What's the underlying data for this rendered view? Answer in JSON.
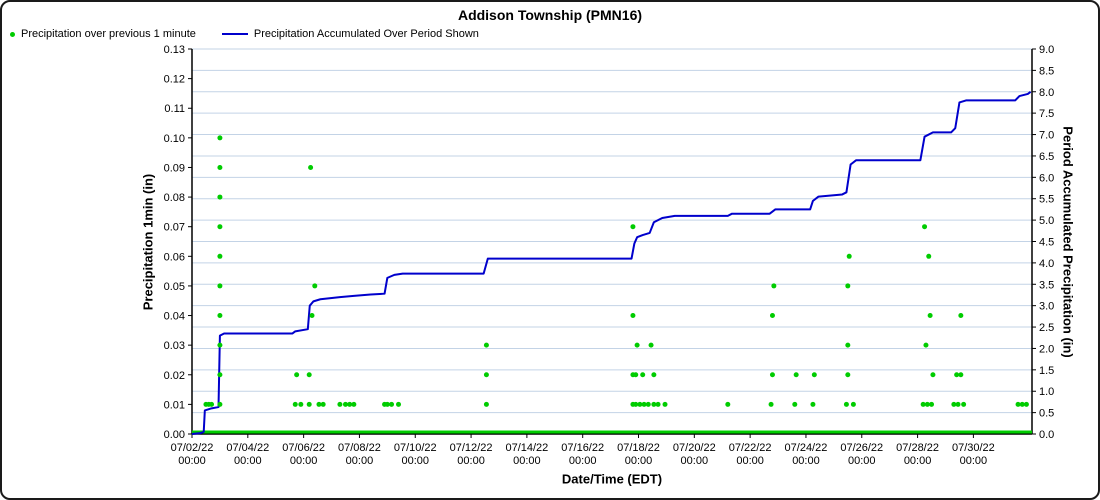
{
  "chart_data": {
    "type": "scatter+line",
    "title": "Addison Township (PMN16)",
    "style": {
      "grid_color": "#c3d3e6",
      "axis_color": "#000000",
      "background": "#ffffff"
    },
    "x_axis": {
      "label": "Date/Time (EDT)",
      "unit": "days since 07/02/22 00:00",
      "range_days": [
        0,
        30.1
      ],
      "tick_time": "00:00",
      "ticks": [
        "07/02/22",
        "07/04/22",
        "07/06/22",
        "07/08/22",
        "07/10/22",
        "07/12/22",
        "07/14/22",
        "07/16/22",
        "07/18/22",
        "07/20/22",
        "07/22/22",
        "07/24/22",
        "07/26/22",
        "07/28/22",
        "07/30/22"
      ]
    },
    "left_axis": {
      "label": "Precipitation 1min (in)",
      "min": 0,
      "max": 0.13,
      "ticks": [
        "0.00",
        "0.01",
        "0.02",
        "0.03",
        "0.04",
        "0.05",
        "0.06",
        "0.07",
        "0.08",
        "0.09",
        "0.10",
        "0.11",
        "0.12",
        "0.13"
      ]
    },
    "right_axis": {
      "label": "Period Accumulated Precipitation (in)",
      "min": 0,
      "max": 9.0,
      "ticks": [
        "0.0",
        "0.5",
        "1.0",
        "1.5",
        "2.0",
        "2.5",
        "3.0",
        "3.5",
        "4.0",
        "4.5",
        "5.0",
        "5.5",
        "6.0",
        "6.5",
        "7.0",
        "7.5",
        "8.0",
        "8.5",
        "9.0"
      ]
    },
    "baseline": {
      "value": 0.0,
      "color": "#00CC00"
    },
    "series": [
      {
        "name": "Precipitation over previous 1 minute",
        "type": "scatter",
        "color": "#00CC00",
        "axis": "left",
        "points": [
          [
            0.5,
            0.01
          ],
          [
            0.6,
            0.01
          ],
          [
            0.7,
            0.01
          ],
          [
            1.0,
            0.01
          ],
          [
            1.0,
            0.02
          ],
          [
            1.0,
            0.03
          ],
          [
            1.0,
            0.04
          ],
          [
            1.0,
            0.05
          ],
          [
            1.0,
            0.06
          ],
          [
            1.0,
            0.07
          ],
          [
            1.0,
            0.08
          ],
          [
            1.0,
            0.09
          ],
          [
            1.0,
            0.1
          ],
          [
            3.7,
            0.01
          ],
          [
            3.75,
            0.02
          ],
          [
            3.9,
            0.01
          ],
          [
            4.2,
            0.01
          ],
          [
            4.2,
            0.02
          ],
          [
            4.25,
            0.09
          ],
          [
            4.3,
            0.04
          ],
          [
            4.4,
            0.05
          ],
          [
            4.55,
            0.01
          ],
          [
            4.7,
            0.01
          ],
          [
            5.3,
            0.01
          ],
          [
            5.5,
            0.01
          ],
          [
            5.65,
            0.01
          ],
          [
            5.8,
            0.01
          ],
          [
            6.9,
            0.01
          ],
          [
            7.0,
            0.01
          ],
          [
            7.15,
            0.01
          ],
          [
            7.4,
            0.01
          ],
          [
            10.55,
            0.01
          ],
          [
            10.55,
            0.02
          ],
          [
            10.55,
            0.03
          ],
          [
            15.8,
            0.01
          ],
          [
            15.8,
            0.02
          ],
          [
            15.8,
            0.04
          ],
          [
            15.8,
            0.07
          ],
          [
            15.9,
            0.01
          ],
          [
            15.9,
            0.02
          ],
          [
            15.95,
            0.03
          ],
          [
            16.05,
            0.01
          ],
          [
            16.15,
            0.02
          ],
          [
            16.2,
            0.01
          ],
          [
            16.35,
            0.01
          ],
          [
            16.45,
            0.03
          ],
          [
            16.55,
            0.01
          ],
          [
            16.55,
            0.02
          ],
          [
            16.7,
            0.01
          ],
          [
            16.95,
            0.01
          ],
          [
            19.2,
            0.01
          ],
          [
            20.75,
            0.01
          ],
          [
            20.8,
            0.02
          ],
          [
            20.8,
            0.04
          ],
          [
            20.85,
            0.05
          ],
          [
            21.6,
            0.01
          ],
          [
            21.65,
            0.02
          ],
          [
            22.25,
            0.01
          ],
          [
            22.3,
            0.02
          ],
          [
            23.45,
            0.01
          ],
          [
            23.5,
            0.02
          ],
          [
            23.5,
            0.03
          ],
          [
            23.5,
            0.05
          ],
          [
            23.55,
            0.06
          ],
          [
            23.7,
            0.01
          ],
          [
            26.2,
            0.01
          ],
          [
            26.25,
            0.07
          ],
          [
            26.3,
            0.03
          ],
          [
            26.35,
            0.01
          ],
          [
            26.4,
            0.06
          ],
          [
            26.45,
            0.04
          ],
          [
            26.5,
            0.01
          ],
          [
            26.55,
            0.02
          ],
          [
            27.3,
            0.01
          ],
          [
            27.4,
            0.02
          ],
          [
            27.45,
            0.01
          ],
          [
            27.55,
            0.02
          ],
          [
            27.55,
            0.04
          ],
          [
            27.65,
            0.01
          ],
          [
            29.6,
            0.01
          ],
          [
            29.75,
            0.01
          ],
          [
            29.9,
            0.01
          ]
        ]
      },
      {
        "name": "Precipitation Accumulated Over Period Shown",
        "type": "line",
        "color": "#0000CC",
        "axis": "right",
        "points": [
          [
            0.0,
            0.0
          ],
          [
            0.3,
            0.02
          ],
          [
            0.42,
            0.05
          ],
          [
            0.46,
            0.55
          ],
          [
            0.7,
            0.6
          ],
          [
            0.95,
            0.63
          ],
          [
            1.0,
            2.3
          ],
          [
            1.15,
            2.35
          ],
          [
            3.6,
            2.35
          ],
          [
            3.7,
            2.4
          ],
          [
            4.15,
            2.45
          ],
          [
            4.22,
            3.0
          ],
          [
            4.35,
            3.1
          ],
          [
            4.6,
            3.15
          ],
          [
            5.3,
            3.2
          ],
          [
            5.8,
            3.23
          ],
          [
            6.4,
            3.26
          ],
          [
            6.9,
            3.28
          ],
          [
            7.0,
            3.65
          ],
          [
            7.25,
            3.72
          ],
          [
            7.55,
            3.75
          ],
          [
            10.45,
            3.75
          ],
          [
            10.6,
            4.1
          ],
          [
            15.75,
            4.1
          ],
          [
            15.85,
            4.45
          ],
          [
            15.95,
            4.6
          ],
          [
            16.15,
            4.65
          ],
          [
            16.4,
            4.7
          ],
          [
            16.55,
            4.95
          ],
          [
            16.85,
            5.05
          ],
          [
            17.3,
            5.1
          ],
          [
            19.2,
            5.1
          ],
          [
            19.35,
            5.15
          ],
          [
            20.7,
            5.15
          ],
          [
            20.9,
            5.25
          ],
          [
            22.15,
            5.25
          ],
          [
            22.25,
            5.45
          ],
          [
            22.45,
            5.55
          ],
          [
            23.3,
            5.6
          ],
          [
            23.45,
            5.65
          ],
          [
            23.6,
            6.3
          ],
          [
            23.8,
            6.4
          ],
          [
            26.1,
            6.4
          ],
          [
            26.25,
            6.95
          ],
          [
            26.55,
            7.05
          ],
          [
            27.2,
            7.05
          ],
          [
            27.35,
            7.15
          ],
          [
            27.5,
            7.75
          ],
          [
            27.75,
            7.8
          ],
          [
            29.5,
            7.8
          ],
          [
            29.65,
            7.9
          ],
          [
            29.95,
            7.95
          ],
          [
            30.05,
            8.0
          ]
        ]
      }
    ]
  }
}
